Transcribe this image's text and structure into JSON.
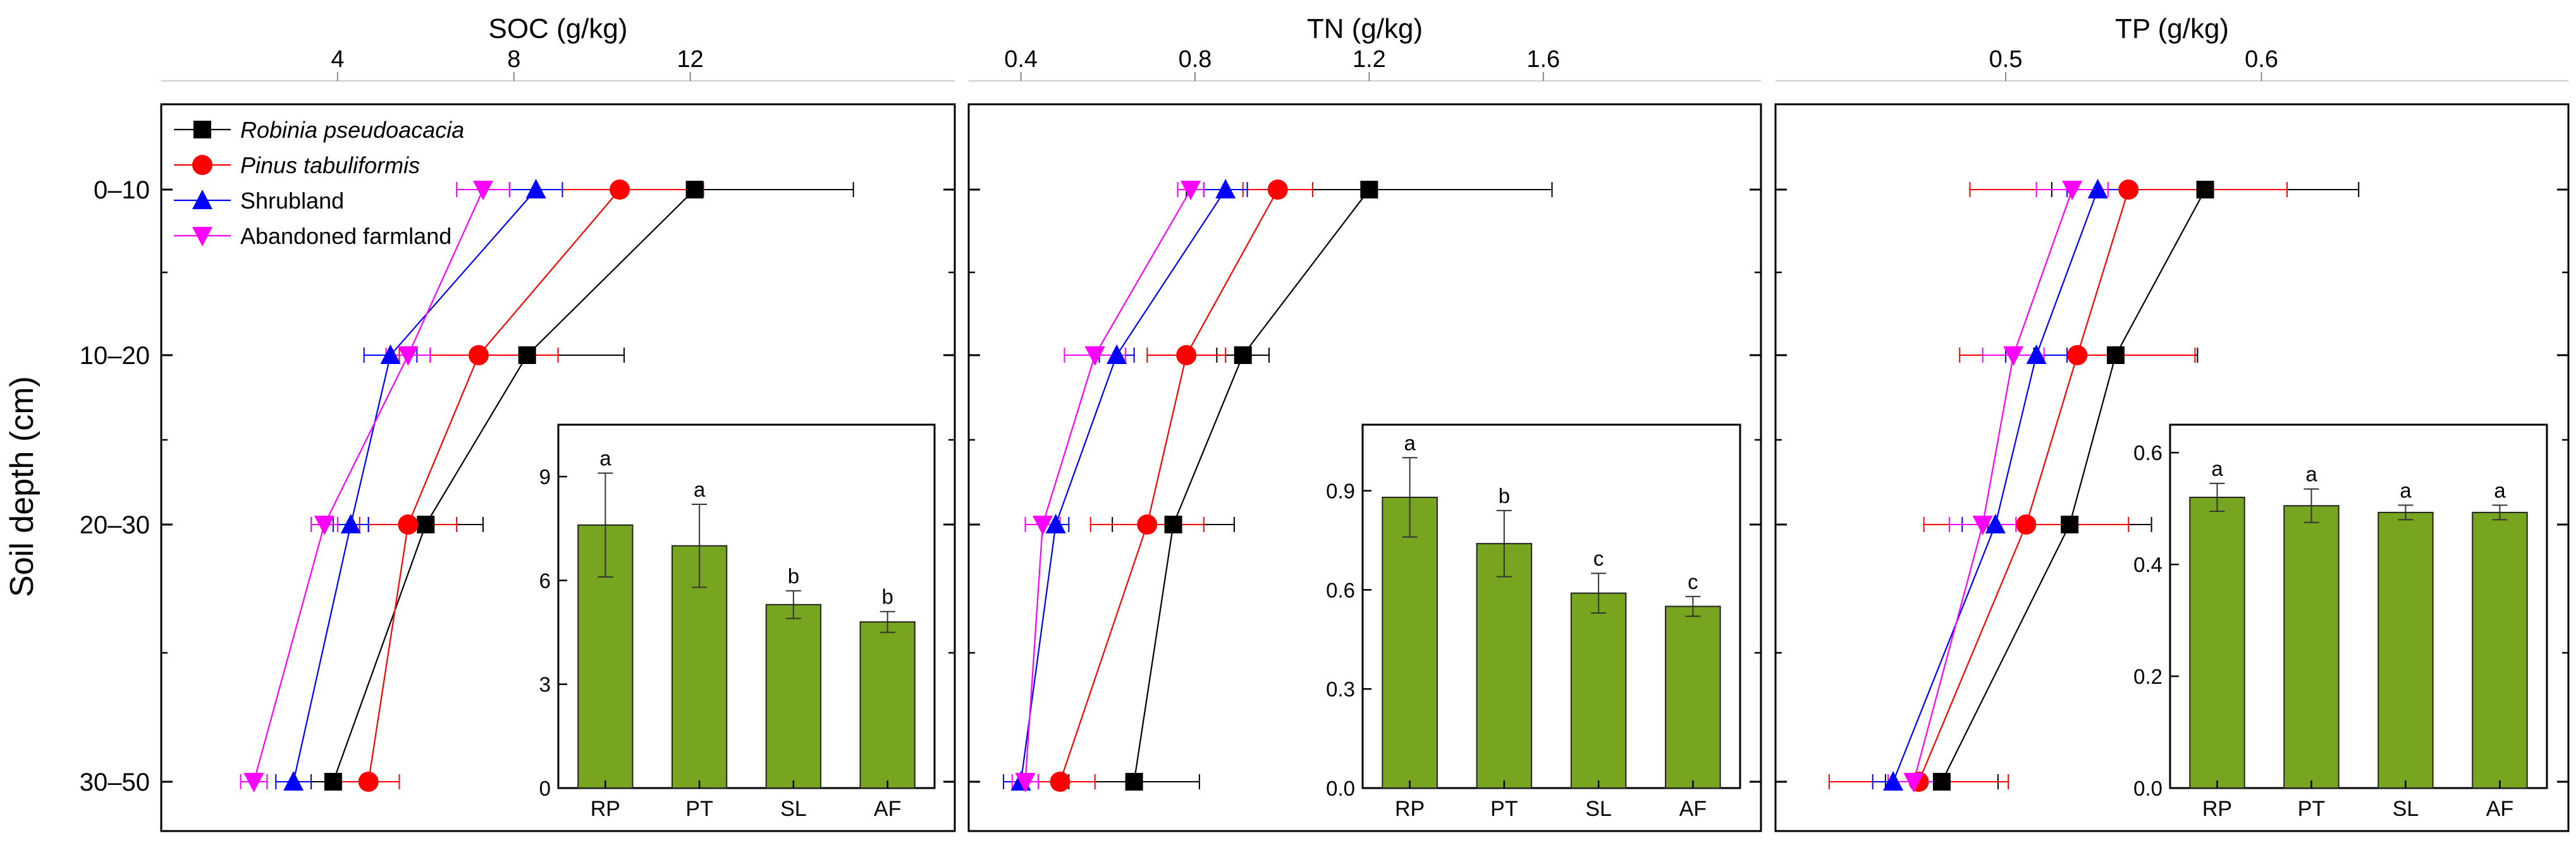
{
  "y_axis_label": "Soil depth (cm)",
  "depth_labels": [
    "0–10",
    "10–20",
    "20–30",
    "30–50"
  ],
  "legend": [
    {
      "name": "Robinia pseudoacacia",
      "italic": true,
      "color": "#000000",
      "marker": "square"
    },
    {
      "name": "Pinus tabuliformis",
      "italic": true,
      "color": "#ff0000",
      "marker": "circle"
    },
    {
      "name": "Shrubland",
      "italic": false,
      "color": "#0000ff",
      "marker": "triangle-up"
    },
    {
      "name": "Abandoned farmland",
      "italic": false,
      "color": "#ff00ff",
      "marker": "triangle-down"
    }
  ],
  "colors": {
    "bar_fill": "#77a51f",
    "bar_stroke": "#222222",
    "axis": "#000000"
  },
  "chart_data": [
    {
      "type": "line",
      "title": "SOC (g/kg)",
      "xlabel": "SOC (g/kg)",
      "ylabel": "Soil depth (cm)",
      "xlim": [
        0,
        18
      ],
      "xticks": [
        4,
        8,
        12
      ],
      "depths": [
        5,
        15,
        25,
        40
      ],
      "ylim": [
        45,
        0
      ],
      "series": [
        {
          "name": "Robinia pseudoacacia",
          "values": [
            12.1,
            8.3,
            6.0,
            3.9
          ],
          "errors": [
            3.6,
            2.2,
            1.3,
            0.9
          ]
        },
        {
          "name": "Pinus tabuliformis",
          "values": [
            10.4,
            7.2,
            5.6,
            4.7
          ],
          "errors": [
            1.9,
            1.8,
            1.1,
            0.7
          ]
        },
        {
          "name": "Shrubland",
          "values": [
            8.5,
            5.2,
            4.3,
            3.0
          ],
          "errors": [
            0.6,
            0.6,
            0.4,
            0.4
          ]
        },
        {
          "name": "Abandoned farmland",
          "values": [
            7.3,
            5.6,
            3.7,
            2.1
          ],
          "errors": [
            0.6,
            0.5,
            0.3,
            0.3
          ]
        }
      ],
      "inset": {
        "type": "bar",
        "categories": [
          "RP",
          "PT",
          "SL",
          "AF"
        ],
        "values": [
          7.6,
          7.0,
          5.3,
          4.8
        ],
        "errors": [
          1.5,
          1.2,
          0.4,
          0.3
        ],
        "letters": [
          "a",
          "a",
          "b",
          "b"
        ],
        "ylim": [
          0,
          10.5
        ],
        "yticks": [
          0,
          3,
          6,
          9
        ],
        "tick_labels": [
          "0",
          "3",
          "6",
          "9"
        ]
      }
    },
    {
      "type": "line",
      "title": "TN (g/kg)",
      "xlabel": "TN (g/kg)",
      "ylabel": "Soil depth (cm)",
      "xlim": [
        0.28,
        2.1
      ],
      "xticks": [
        0.4,
        0.8,
        1.2,
        1.6
      ],
      "depths": [
        5,
        15,
        25,
        40
      ],
      "ylim": [
        45,
        0
      ],
      "series": [
        {
          "name": "Robinia pseudoacacia",
          "values": [
            1.2,
            0.91,
            0.75,
            0.66
          ],
          "errors": [
            0.42,
            0.06,
            0.14,
            0.15
          ]
        },
        {
          "name": "Pinus tabuliformis",
          "values": [
            0.99,
            0.78,
            0.69,
            0.49
          ],
          "errors": [
            0.08,
            0.09,
            0.13,
            0.08
          ]
        },
        {
          "name": "Shrubland",
          "values": [
            0.87,
            0.62,
            0.48,
            0.4
          ],
          "errors": [
            0.05,
            0.04,
            0.03,
            0.04
          ]
        },
        {
          "name": "Abandoned farmland",
          "values": [
            0.79,
            0.57,
            0.45,
            0.41
          ],
          "errors": [
            0.03,
            0.07,
            0.04,
            0.03
          ]
        }
      ],
      "inset": {
        "type": "bar",
        "categories": [
          "RP",
          "PT",
          "SL",
          "AF"
        ],
        "values": [
          0.88,
          0.74,
          0.59,
          0.55
        ],
        "errors": [
          0.12,
          0.1,
          0.06,
          0.03
        ],
        "letters": [
          "a",
          "b",
          "c",
          "c"
        ],
        "ylim": [
          0,
          1.1
        ],
        "yticks": [
          0,
          0.3,
          0.6,
          0.9
        ],
        "tick_labels": [
          "0.0",
          "0.3",
          "0.6",
          "0.9"
        ]
      }
    },
    {
      "type": "line",
      "title": "TP (g/kg)",
      "xlabel": "TP (g/kg)",
      "ylabel": "Soil depth (cm)",
      "xlim": [
        0.41,
        0.72
      ],
      "xticks": [
        0.5,
        0.6
      ],
      "depths": [
        5,
        15,
        25,
        40
      ],
      "ylim": [
        45,
        0
      ],
      "series": [
        {
          "name": "Robinia pseudoacacia",
          "values": [
            0.578,
            0.543,
            0.525,
            0.475
          ],
          "errors": [
            0.06,
            0.032,
            0.032,
            0.022
          ]
        },
        {
          "name": "Pinus tabuliformis",
          "values": [
            0.548,
            0.528,
            0.508,
            0.466
          ],
          "errors": [
            0.062,
            0.046,
            0.04,
            0.035
          ]
        },
        {
          "name": "Shrubland",
          "values": [
            0.536,
            0.512,
            0.496,
            0.456
          ],
          "errors": [
            0.012,
            0.012,
            0.013,
            0.008
          ]
        },
        {
          "name": "Abandoned farmland",
          "values": [
            0.526,
            0.503,
            0.491,
            0.464
          ],
          "errors": [
            0.014,
            0.012,
            0.013,
            0.01
          ]
        }
      ],
      "inset": {
        "type": "bar",
        "categories": [
          "RP",
          "PT",
          "SL",
          "AF"
        ],
        "values": [
          0.52,
          0.505,
          0.493,
          0.493
        ],
        "errors": [
          0.025,
          0.03,
          0.013,
          0.013
        ],
        "letters": [
          "a",
          "a",
          "a",
          "a"
        ],
        "ylim": [
          0,
          0.65
        ],
        "yticks": [
          0,
          0.2,
          0.4,
          0.6
        ],
        "tick_labels": [
          "0.0",
          "0.2",
          "0.4",
          "0.6"
        ]
      }
    }
  ]
}
